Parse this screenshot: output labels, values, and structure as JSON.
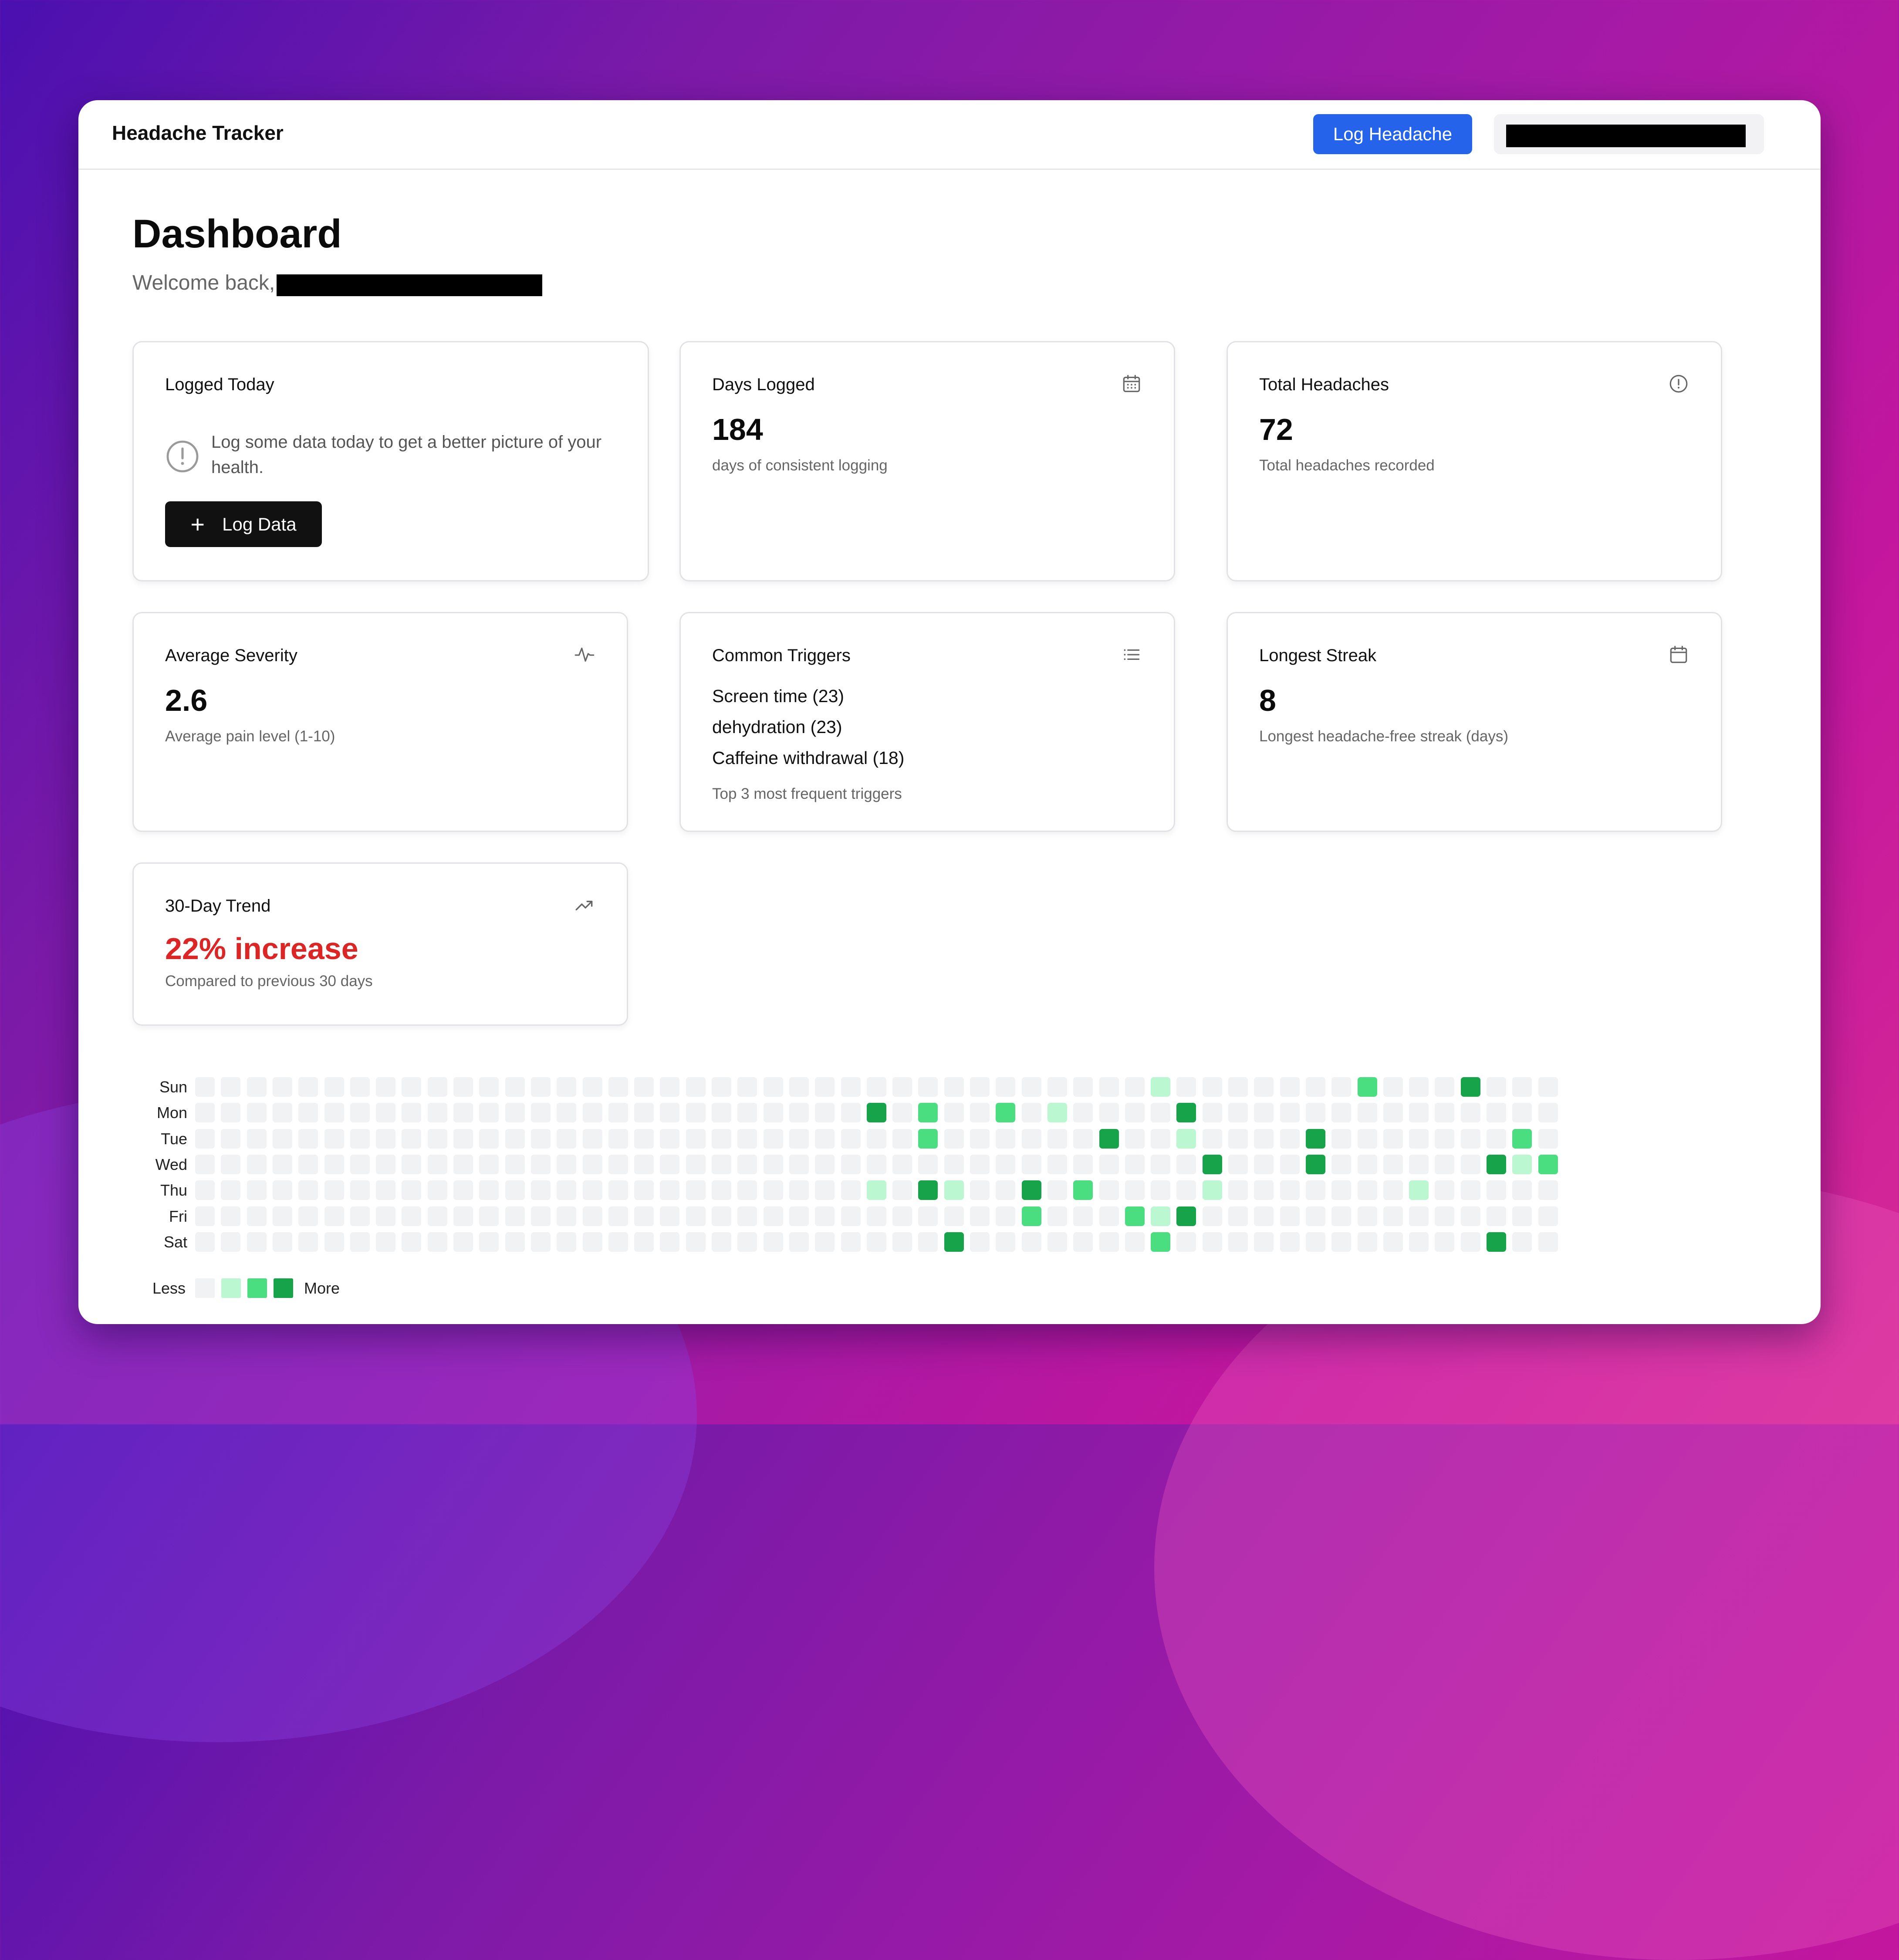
{
  "header": {
    "app_title": "Headache Tracker",
    "log_headache_label": "Log Headache"
  },
  "page": {
    "title": "Dashboard",
    "welcome": "Welcome back,"
  },
  "cards": {
    "logged_today": {
      "title": "Logged Today",
      "message": "Log some data today to get a better picture of your health.",
      "button_label": "Log Data",
      "icon": "alert-circle-icon"
    },
    "days_logged": {
      "title": "Days Logged",
      "value": "184",
      "sub": "days of consistent logging",
      "icon": "calendar-icon"
    },
    "total_headaches": {
      "title": "Total Headaches",
      "value": "72",
      "sub": "Total headaches recorded",
      "icon": "alert-circle-icon"
    },
    "average_severity": {
      "title": "Average Severity",
      "value": "2.6",
      "sub": "Average pain level (1-10)",
      "icon": "activity-icon"
    },
    "common_triggers": {
      "title": "Common Triggers",
      "items": [
        "Screen time (23)",
        "dehydration (23)",
        "Caffeine withdrawal (18)"
      ],
      "sub": "Top 3 most frequent triggers",
      "icon": "list-icon"
    },
    "longest_streak": {
      "title": "Longest Streak",
      "value": "8",
      "sub": "Longest headache-free streak (days)",
      "icon": "calendar-icon"
    },
    "trend": {
      "title": "30-Day Trend",
      "value": "22% increase",
      "sub": "Compared to previous 30 days",
      "icon": "trending-up-icon"
    }
  },
  "heatmap": {
    "day_labels": [
      "Sun",
      "Mon",
      "Tue",
      "Wed",
      "Thu",
      "Fri",
      "Sat"
    ],
    "weeks": 53,
    "levels_by_day": [
      [
        [
          37,
          1
        ],
        [
          45,
          2
        ],
        [
          49,
          3
        ]
      ],
      [
        [
          26,
          3
        ],
        [
          28,
          2
        ],
        [
          31,
          2
        ],
        [
          33,
          1
        ],
        [
          38,
          3
        ]
      ],
      [
        [
          28,
          2
        ],
        [
          35,
          3
        ],
        [
          38,
          1
        ],
        [
          43,
          3
        ],
        [
          51,
          2
        ]
      ],
      [
        [
          39,
          3
        ],
        [
          43,
          3
        ],
        [
          50,
          3
        ],
        [
          51,
          1
        ],
        [
          52,
          2
        ]
      ],
      [
        [
          26,
          1
        ],
        [
          28,
          3
        ],
        [
          29,
          1
        ],
        [
          32,
          3
        ],
        [
          34,
          2
        ],
        [
          39,
          1
        ],
        [
          47,
          1
        ]
      ],
      [
        [
          32,
          2
        ],
        [
          36,
          2
        ],
        [
          37,
          1
        ],
        [
          38,
          3
        ]
      ],
      [
        [
          29,
          3
        ],
        [
          37,
          2
        ],
        [
          50,
          3
        ]
      ]
    ],
    "legend_less": "Less",
    "legend_more": "More",
    "colors": [
      "#f1f2f4",
      "#bbf7d0",
      "#4ade80",
      "#16a34a"
    ]
  },
  "colors": {
    "accent_blue": "#2563eb",
    "trend_red": "#dc2626",
    "button_dark": "#111111"
  }
}
